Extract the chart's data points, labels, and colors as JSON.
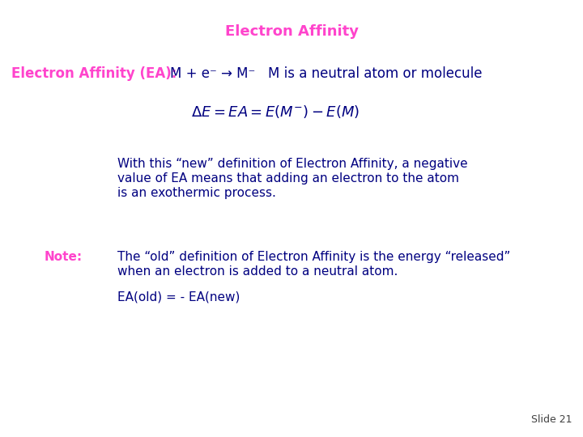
{
  "title": "Electron Affinity",
  "title_color": "#FF44CC",
  "title_fontsize": 13,
  "background_color": "#FFFFFF",
  "ea_label": "Electron Affinity (EA):",
  "ea_label_color": "#FF44CC",
  "ea_label_fontsize": 12,
  "ea_reaction": "M + e⁻ → M⁻   M is a neutral atom or molecule",
  "ea_reaction_color": "#000080",
  "ea_reaction_fontsize": 12,
  "formula_color": "#000080",
  "formula_fontsize": 13,
  "para1_line1": "With this “new” definition of Electron Affinity, a negative",
  "para1_line2": "value of EA means that adding an electron to the atom",
  "para1_line3": "is an exothermic process.",
  "para1_color": "#000080",
  "para1_fontsize": 11,
  "note_label": "Note:",
  "note_label_color": "#FF44CC",
  "note_label_fontsize": 11,
  "note_line1": "The “old” definition of Electron Affinity is the energy “released”",
  "note_line2": "when an electron is added to a neutral atom.",
  "note_text_color": "#000080",
  "note_text_fontsize": 11,
  "ea_old": "EA(old) = - EA(new)",
  "ea_old_color": "#000080",
  "ea_old_fontsize": 11,
  "slide_number": "Slide 21",
  "slide_number_color": "#404040",
  "slide_number_fontsize": 9
}
